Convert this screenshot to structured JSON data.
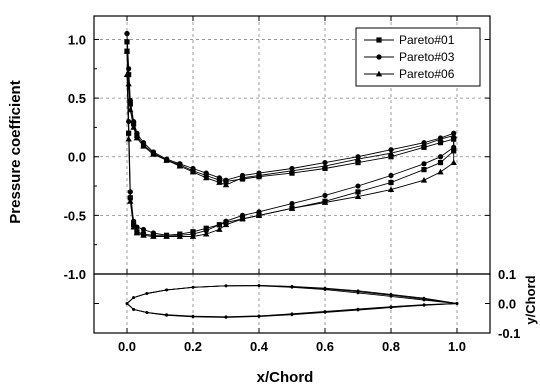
{
  "chart_data": [
    {
      "type": "line",
      "id": "cp",
      "xlabel": "",
      "ylabel": "Pressure coefficient",
      "xlim": [
        -0.1,
        1.1
      ],
      "ylim": [
        1.2,
        -1.0
      ],
      "y_inverted": true,
      "grid": true,
      "legend_position": "top-right",
      "xticks": [],
      "yticks": [
        "-1.0",
        "-0.5",
        "0.0",
        "0.5",
        "1.0"
      ],
      "series": [
        {
          "name": "Pareto#01",
          "marker": "square",
          "x": [
            0.0,
            0.005,
            0.01,
            0.02,
            0.03,
            0.05,
            0.08,
            0.12,
            0.16,
            0.2,
            0.24,
            0.28,
            0.3,
            0.35,
            0.4,
            0.5,
            0.6,
            0.7,
            0.8,
            0.9,
            0.95,
            0.99,
            0.99,
            0.95,
            0.9,
            0.8,
            0.7,
            0.6,
            0.5,
            0.4,
            0.35,
            0.3,
            0.28,
            0.24,
            0.2,
            0.16,
            0.12,
            0.08,
            0.05,
            0.03,
            0.02,
            0.01,
            0.005,
            0.0
          ],
          "y": [
            0.9,
            0.2,
            -0.35,
            -0.58,
            -0.64,
            -0.66,
            -0.67,
            -0.67,
            -0.66,
            -0.64,
            -0.61,
            -0.58,
            -0.56,
            -0.53,
            -0.5,
            -0.44,
            -0.38,
            -0.3,
            -0.22,
            -0.11,
            -0.05,
            0.05,
            0.15,
            0.12,
            0.08,
            0.0,
            -0.05,
            -0.1,
            -0.14,
            -0.17,
            -0.19,
            -0.21,
            -0.2,
            -0.16,
            -0.12,
            -0.07,
            -0.03,
            0.03,
            0.1,
            0.18,
            0.28,
            0.45,
            0.7,
            0.98
          ]
        },
        {
          "name": "Pareto#03",
          "marker": "circle",
          "x": [
            0.0,
            0.005,
            0.01,
            0.02,
            0.03,
            0.05,
            0.08,
            0.12,
            0.16,
            0.2,
            0.24,
            0.28,
            0.3,
            0.35,
            0.4,
            0.5,
            0.6,
            0.7,
            0.8,
            0.9,
            0.95,
            0.99,
            0.99,
            0.95,
            0.9,
            0.8,
            0.7,
            0.6,
            0.5,
            0.4,
            0.35,
            0.3,
            0.28,
            0.24,
            0.2,
            0.16,
            0.12,
            0.08,
            0.05,
            0.03,
            0.02,
            0.01,
            0.005,
            0.0
          ],
          "y": [
            1.05,
            0.3,
            -0.3,
            -0.55,
            -0.6,
            -0.62,
            -0.65,
            -0.67,
            -0.67,
            -0.66,
            -0.63,
            -0.58,
            -0.55,
            -0.5,
            -0.47,
            -0.4,
            -0.33,
            -0.25,
            -0.16,
            -0.06,
            0.0,
            0.08,
            0.2,
            0.16,
            0.12,
            0.06,
            0.0,
            -0.05,
            -0.1,
            -0.14,
            -0.16,
            -0.2,
            -0.18,
            -0.14,
            -0.1,
            -0.06,
            -0.02,
            0.04,
            0.12,
            0.2,
            0.3,
            0.48,
            0.75,
            1.05
          ]
        },
        {
          "name": "Pareto#06",
          "marker": "triangle",
          "x": [
            0.0,
            0.005,
            0.01,
            0.02,
            0.03,
            0.05,
            0.08,
            0.12,
            0.16,
            0.2,
            0.24,
            0.28,
            0.3,
            0.35,
            0.4,
            0.5,
            0.6,
            0.7,
            0.8,
            0.9,
            0.95,
            0.99,
            0.99,
            0.95,
            0.9,
            0.8,
            0.7,
            0.6,
            0.5,
            0.4,
            0.35,
            0.3,
            0.28,
            0.24,
            0.2,
            0.16,
            0.12,
            0.08,
            0.05,
            0.03,
            0.02,
            0.01,
            0.005,
            0.0
          ],
          "y": [
            0.7,
            0.15,
            -0.38,
            -0.6,
            -0.65,
            -0.67,
            -0.68,
            -0.68,
            -0.68,
            -0.68,
            -0.66,
            -0.62,
            -0.58,
            -0.53,
            -0.5,
            -0.44,
            -0.39,
            -0.34,
            -0.28,
            -0.2,
            -0.13,
            -0.05,
            0.18,
            0.15,
            0.1,
            0.03,
            -0.02,
            -0.08,
            -0.12,
            -0.16,
            -0.18,
            -0.24,
            -0.22,
            -0.18,
            -0.13,
            -0.08,
            -0.03,
            0.02,
            0.09,
            0.16,
            0.25,
            0.4,
            0.62,
            0.9
          ]
        }
      ]
    },
    {
      "type": "line",
      "id": "airfoil",
      "xlabel": "x/Chord",
      "ylabel": "y/Chord",
      "xlim": [
        -0.1,
        1.1
      ],
      "ylim": [
        -0.1,
        0.1
      ],
      "xticks": [
        "0.0",
        "0.2",
        "0.4",
        "0.6",
        "0.8",
        "1.0"
      ],
      "yticks": [
        "0.1",
        "0.0",
        "-0.1"
      ],
      "series": [
        {
          "name": "Pareto#01",
          "marker": "square",
          "x": [
            1.0,
            0.9,
            0.8,
            0.7,
            0.6,
            0.5,
            0.4,
            0.3,
            0.2,
            0.12,
            0.06,
            0.02,
            0.0,
            0.02,
            0.06,
            0.12,
            0.2,
            0.3,
            0.4,
            0.5,
            0.6,
            0.7,
            0.8,
            0.9,
            1.0
          ],
          "y": [
            0.0,
            0.015,
            0.028,
            0.04,
            0.05,
            0.057,
            0.061,
            0.06,
            0.055,
            0.046,
            0.034,
            0.02,
            0.0,
            -0.02,
            -0.031,
            -0.039,
            -0.044,
            -0.046,
            -0.043,
            -0.036,
            -0.028,
            -0.02,
            -0.012,
            -0.005,
            0.0
          ]
        },
        {
          "name": "Pareto#03",
          "marker": "circle",
          "x": [
            1.0,
            0.9,
            0.8,
            0.7,
            0.6,
            0.5,
            0.4,
            0.3,
            0.2,
            0.12,
            0.06,
            0.02,
            0.0,
            0.02,
            0.06,
            0.12,
            0.2,
            0.3,
            0.4,
            0.5,
            0.6,
            0.7,
            0.8,
            0.9,
            1.0
          ],
          "y": [
            0.0,
            0.012,
            0.024,
            0.036,
            0.047,
            0.055,
            0.06,
            0.06,
            0.055,
            0.046,
            0.034,
            0.02,
            0.0,
            -0.02,
            -0.031,
            -0.04,
            -0.045,
            -0.047,
            -0.044,
            -0.038,
            -0.03,
            -0.022,
            -0.014,
            -0.006,
            0.0
          ]
        },
        {
          "name": "Pareto#06",
          "marker": "triangle",
          "x": [
            1.0,
            0.9,
            0.8,
            0.7,
            0.6,
            0.5,
            0.4,
            0.3,
            0.2,
            0.12,
            0.06,
            0.02,
            0.0,
            0.02,
            0.06,
            0.12,
            0.2,
            0.3,
            0.4,
            0.5,
            0.6,
            0.7,
            0.8,
            0.9,
            1.0
          ],
          "y": [
            0.0,
            0.018,
            0.031,
            0.043,
            0.052,
            0.058,
            0.061,
            0.06,
            0.055,
            0.046,
            0.034,
            0.02,
            0.0,
            -0.02,
            -0.03,
            -0.038,
            -0.043,
            -0.045,
            -0.042,
            -0.035,
            -0.027,
            -0.019,
            -0.011,
            -0.004,
            0.0
          ]
        }
      ]
    }
  ]
}
